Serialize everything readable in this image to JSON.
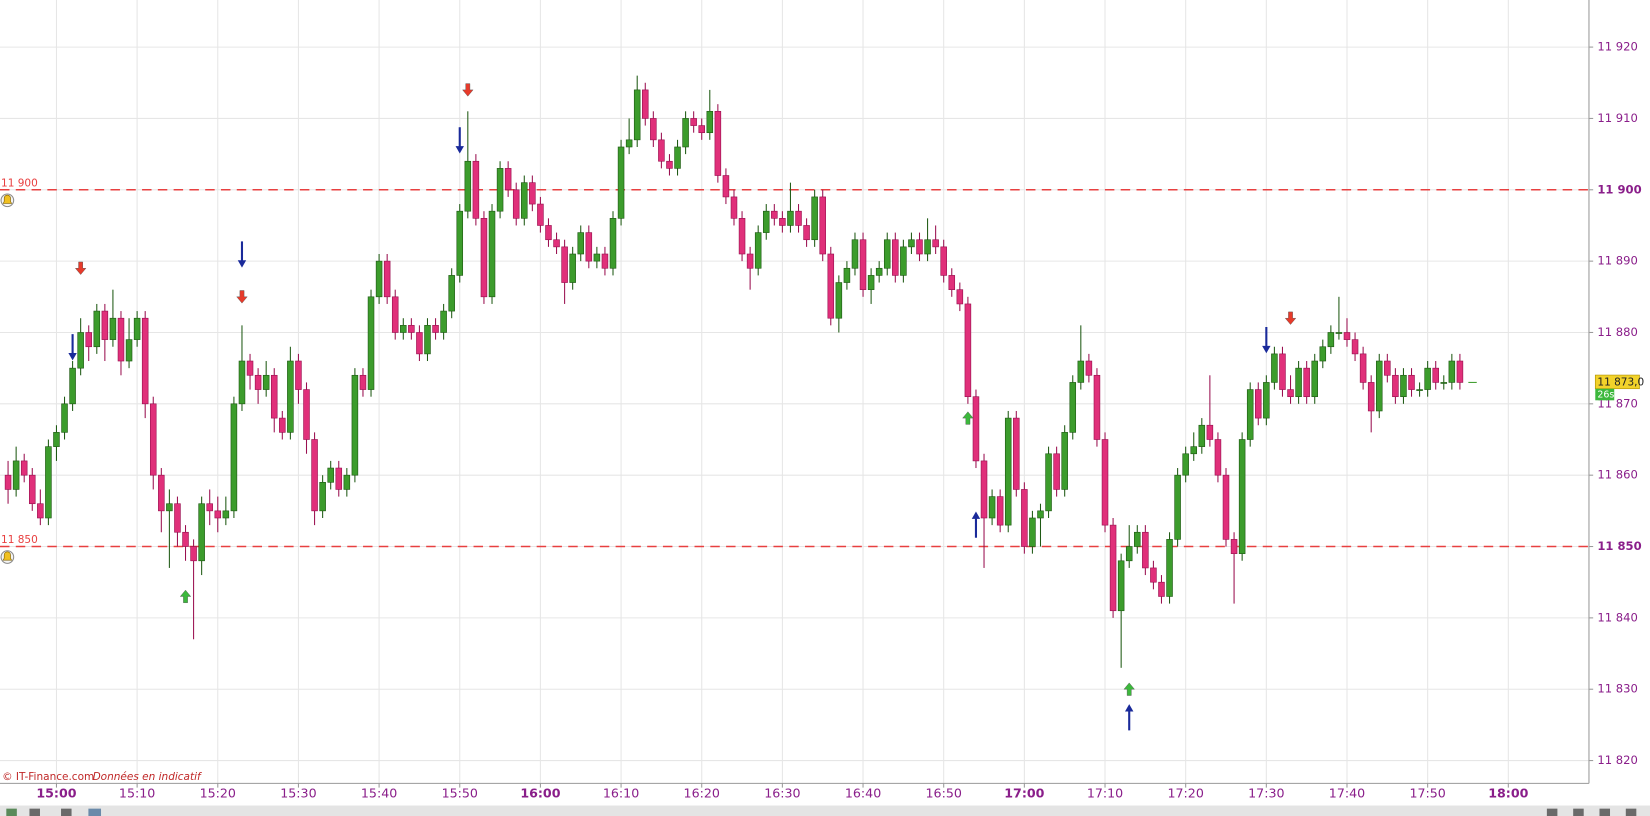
{
  "chart_data": {
    "type": "candlestick",
    "x": [
      "14:54",
      "14:55",
      "14:56",
      "14:57",
      "14:58",
      "14:59",
      "15:00",
      "15:01",
      "15:02",
      "15:03",
      "15:04",
      "15:05",
      "15:06",
      "15:07",
      "15:08",
      "15:09",
      "15:10",
      "15:11",
      "15:12",
      "15:13",
      "15:14",
      "15:15",
      "15:16",
      "15:17",
      "15:18",
      "15:19",
      "15:20",
      "15:21",
      "15:22",
      "15:23",
      "15:24",
      "15:25",
      "15:26",
      "15:27",
      "15:28",
      "15:29",
      "15:30",
      "15:31",
      "15:32",
      "15:33",
      "15:34",
      "15:35",
      "15:36",
      "15:37",
      "15:38",
      "15:39",
      "15:40",
      "15:41",
      "15:42",
      "15:43",
      "15:44",
      "15:45",
      "15:46",
      "15:47",
      "15:48",
      "15:49",
      "15:50",
      "15:51",
      "15:52",
      "15:53",
      "15:54",
      "15:55",
      "15:56",
      "15:57",
      "15:58",
      "15:59",
      "16:00",
      "16:01",
      "16:02",
      "16:03",
      "16:04",
      "16:05",
      "16:06",
      "16:07",
      "16:08",
      "16:09",
      "16:10",
      "16:11",
      "16:12",
      "16:13",
      "16:14",
      "16:15",
      "16:16",
      "16:17",
      "16:18",
      "16:19",
      "16:20",
      "16:21",
      "16:22",
      "16:23",
      "16:24",
      "16:25",
      "16:26",
      "16:27",
      "16:28",
      "16:29",
      "16:30",
      "16:31",
      "16:32",
      "16:33",
      "16:34",
      "16:35",
      "16:36",
      "16:37",
      "16:38",
      "16:39",
      "16:40",
      "16:41",
      "16:42",
      "16:43",
      "16:44",
      "16:45",
      "16:46",
      "16:47",
      "16:48",
      "16:49",
      "16:50",
      "16:51",
      "16:52",
      "16:53",
      "16:54",
      "16:55",
      "16:56",
      "16:57",
      "16:58",
      "16:59",
      "17:00",
      "17:01",
      "17:02",
      "17:03",
      "17:04",
      "17:05",
      "17:06",
      "17:07",
      "17:08",
      "17:09",
      "17:10",
      "17:11",
      "17:12",
      "17:13",
      "17:14",
      "17:15",
      "17:16",
      "17:17",
      "17:18",
      "17:19",
      "17:20",
      "17:21",
      "17:22",
      "17:23",
      "17:24",
      "17:25",
      "17:26",
      "17:27",
      "17:28",
      "17:29",
      "17:30",
      "17:31",
      "17:32",
      "17:33",
      "17:34",
      "17:35",
      "17:36",
      "17:37",
      "17:38",
      "17:39",
      "17:40",
      "17:41",
      "17:42",
      "17:43",
      "17:44",
      "17:45",
      "17:46",
      "17:47",
      "17:48",
      "17:49",
      "17:50",
      "17:51",
      "17:52",
      "17:53",
      "17:54"
    ],
    "candles": [
      [
        11860,
        11862,
        11856,
        11858
      ],
      [
        11858,
        11864,
        11857,
        11862
      ],
      [
        11862,
        11863,
        11859,
        11860
      ],
      [
        11860,
        11861,
        11855,
        11856
      ],
      [
        11856,
        11858,
        11853,
        11854
      ],
      [
        11854,
        11865,
        11853,
        11864
      ],
      [
        11864,
        11867,
        11862,
        11866
      ],
      [
        11866,
        11871,
        11865,
        11870
      ],
      [
        11870,
        11876,
        11869,
        11875
      ],
      [
        11875,
        11882,
        11874,
        11880
      ],
      [
        11880,
        11881,
        11876,
        11878
      ],
      [
        11878,
        11884,
        11877,
        11883
      ],
      [
        11883,
        11884,
        11876,
        11879
      ],
      [
        11879,
        11886,
        11878,
        11882
      ],
      [
        11882,
        11883,
        11874,
        11876
      ],
      [
        11876,
        11882,
        11875,
        11879
      ],
      [
        11879,
        11883,
        11878,
        11882
      ],
      [
        11882,
        11883,
        11868,
        11870
      ],
      [
        11870,
        11871,
        11858,
        11860
      ],
      [
        11860,
        11861,
        11852,
        11855
      ],
      [
        11855,
        11858,
        11847,
        11856
      ],
      [
        11856,
        11857,
        11850,
        11852
      ],
      [
        11852,
        11853,
        11848,
        11850
      ],
      [
        11850,
        11851,
        11837,
        11848
      ],
      [
        11848,
        11857,
        11846,
        11856
      ],
      [
        11856,
        11858,
        11853,
        11855
      ],
      [
        11855,
        11857,
        11852,
        11854
      ],
      [
        11854,
        11857,
        11853,
        11855
      ],
      [
        11855,
        11871,
        11854,
        11870
      ],
      [
        11870,
        11881,
        11869,
        11876
      ],
      [
        11876,
        11877,
        11872,
        11874
      ],
      [
        11874,
        11875,
        11870,
        11872
      ],
      [
        11872,
        11876,
        11871,
        11874
      ],
      [
        11874,
        11875,
        11866,
        11868
      ],
      [
        11868,
        11869,
        11865,
        11866
      ],
      [
        11866,
        11878,
        11865,
        11876
      ],
      [
        11876,
        11877,
        11870,
        11872
      ],
      [
        11872,
        11873,
        11863,
        11865
      ],
      [
        11865,
        11866,
        11853,
        11855
      ],
      [
        11855,
        11860,
        11854,
        11859
      ],
      [
        11859,
        11862,
        11858,
        11861
      ],
      [
        11861,
        11862,
        11857,
        11858
      ],
      [
        11858,
        11861,
        11857,
        11860
      ],
      [
        11860,
        11875,
        11859,
        11874
      ],
      [
        11874,
        11875,
        11871,
        11872
      ],
      [
        11872,
        11886,
        11871,
        11885
      ],
      [
        11885,
        11891,
        11884,
        11890
      ],
      [
        11890,
        11891,
        11884,
        11885
      ],
      [
        11885,
        11886,
        11879,
        11880
      ],
      [
        11880,
        11882,
        11879,
        11881
      ],
      [
        11881,
        11882,
        11879,
        11880
      ],
      [
        11880,
        11881,
        11876,
        11877
      ],
      [
        11877,
        11882,
        11876,
        11881
      ],
      [
        11881,
        11882,
        11879,
        11880
      ],
      [
        11880,
        11884,
        11879,
        11883
      ],
      [
        11883,
        11889,
        11882,
        11888
      ],
      [
        11888,
        11898,
        11887,
        11897
      ],
      [
        11897,
        11911,
        11896,
        11904
      ],
      [
        11904,
        11905,
        11895,
        11896
      ],
      [
        11896,
        11897,
        11884,
        11885
      ],
      [
        11885,
        11898,
        11884,
        11897
      ],
      [
        11897,
        11904,
        11896,
        11903
      ],
      [
        11903,
        11904,
        11899,
        11900
      ],
      [
        11900,
        11901,
        11895,
        11896
      ],
      [
        11896,
        11902,
        11895,
        11901
      ],
      [
        11901,
        11902,
        11897,
        11898
      ],
      [
        11898,
        11899,
        11894,
        11895
      ],
      [
        11895,
        11896,
        11892,
        11893
      ],
      [
        11893,
        11894,
        11891,
        11892
      ],
      [
        11892,
        11893,
        11884,
        11887
      ],
      [
        11887,
        11892,
        11886,
        11891
      ],
      [
        11891,
        11895,
        11890,
        11894
      ],
      [
        11894,
        11895,
        11889,
        11890
      ],
      [
        11890,
        11892,
        11889,
        11891
      ],
      [
        11891,
        11892,
        11888,
        11889
      ],
      [
        11889,
        11897,
        11888,
        11896
      ],
      [
        11896,
        11907,
        11895,
        11906
      ],
      [
        11906,
        11910,
        11905,
        11907
      ],
      [
        11907,
        11916,
        11906,
        11914
      ],
      [
        11914,
        11915,
        11909,
        11910
      ],
      [
        11910,
        11911,
        11906,
        11907
      ],
      [
        11907,
        11908,
        11903,
        11904
      ],
      [
        11904,
        11905,
        11902,
        11903
      ],
      [
        11903,
        11907,
        11902,
        11906
      ],
      [
        11906,
        11911,
        11905,
        11910
      ],
      [
        11910,
        11911,
        11908,
        11909
      ],
      [
        11909,
        11910,
        11907,
        11908
      ],
      [
        11908,
        11914,
        11907,
        11911
      ],
      [
        11911,
        11912,
        11901,
        11902
      ],
      [
        11902,
        11903,
        11898,
        11899
      ],
      [
        11899,
        11900,
        11895,
        11896
      ],
      [
        11896,
        11897,
        11890,
        11891
      ],
      [
        11891,
        11892,
        11886,
        11889
      ],
      [
        11889,
        11895,
        11888,
        11894
      ],
      [
        11894,
        11898,
        11893,
        11897
      ],
      [
        11897,
        11898,
        11895,
        11896
      ],
      [
        11896,
        11897,
        11894,
        11895
      ],
      [
        11895,
        11901,
        11894,
        11897
      ],
      [
        11897,
        11898,
        11894,
        11895
      ],
      [
        11895,
        11896,
        11892,
        11893
      ],
      [
        11893,
        11900,
        11892,
        11899
      ],
      [
        11899,
        11900,
        11890,
        11891
      ],
      [
        11891,
        11892,
        11881,
        11882
      ],
      [
        11882,
        11888,
        11880,
        11887
      ],
      [
        11887,
        11890,
        11886,
        11889
      ],
      [
        11889,
        11894,
        11888,
        11893
      ],
      [
        11893,
        11894,
        11885,
        11886
      ],
      [
        11886,
        11889,
        11884,
        11888
      ],
      [
        11888,
        11890,
        11887,
        11889
      ],
      [
        11889,
        11894,
        11888,
        11893
      ],
      [
        11893,
        11894,
        11887,
        11888
      ],
      [
        11888,
        11893,
        11887,
        11892
      ],
      [
        11892,
        11894,
        11891,
        11893
      ],
      [
        11893,
        11894,
        11890,
        11891
      ],
      [
        11891,
        11896,
        11890,
        11893
      ],
      [
        11893,
        11895,
        11891,
        11892
      ],
      [
        11892,
        11893,
        11887,
        11888
      ],
      [
        11888,
        11889,
        11885,
        11886
      ],
      [
        11886,
        11887,
        11883,
        11884
      ],
      [
        11884,
        11885,
        11870,
        11871
      ],
      [
        11871,
        11872,
        11861,
        11862
      ],
      [
        11862,
        11863,
        11847,
        11854
      ],
      [
        11854,
        11858,
        11853,
        11857
      ],
      [
        11857,
        11858,
        11852,
        11853
      ],
      [
        11853,
        11869,
        11852,
        11868
      ],
      [
        11868,
        11869,
        11857,
        11858
      ],
      [
        11858,
        11859,
        11849,
        11850
      ],
      [
        11850,
        11855,
        11849,
        11854
      ],
      [
        11854,
        11856,
        11850,
        11855
      ],
      [
        11855,
        11864,
        11854,
        11863
      ],
      [
        11863,
        11864,
        11857,
        11858
      ],
      [
        11858,
        11867,
        11857,
        11866
      ],
      [
        11866,
        11874,
        11865,
        11873
      ],
      [
        11873,
        11881,
        11872,
        11876
      ],
      [
        11876,
        11877,
        11873,
        11874
      ],
      [
        11874,
        11875,
        11864,
        11865
      ],
      [
        11865,
        11866,
        11852,
        11853
      ],
      [
        11853,
        11854,
        11840,
        11841
      ],
      [
        11841,
        11849,
        11833,
        11848
      ],
      [
        11848,
        11853,
        11847,
        11850
      ],
      [
        11850,
        11853,
        11849,
        11852
      ],
      [
        11852,
        11853,
        11846,
        11847
      ],
      [
        11847,
        11848,
        11844,
        11845
      ],
      [
        11845,
        11846,
        11842,
        11843
      ],
      [
        11843,
        11852,
        11842,
        11851
      ],
      [
        11851,
        11861,
        11850,
        11860
      ],
      [
        11860,
        11864,
        11859,
        11863
      ],
      [
        11863,
        11866,
        11862,
        11864
      ],
      [
        11864,
        11868,
        11863,
        11867
      ],
      [
        11867,
        11874,
        11864,
        11865
      ],
      [
        11865,
        11866,
        11859,
        11860
      ],
      [
        11860,
        11861,
        11850,
        11851
      ],
      [
        11851,
        11852,
        11842,
        11849
      ],
      [
        11849,
        11866,
        11848,
        11865
      ],
      [
        11865,
        11873,
        11864,
        11872
      ],
      [
        11872,
        11873,
        11867,
        11868
      ],
      [
        11868,
        11874,
        11867,
        11873
      ],
      [
        11873,
        11878,
        11872,
        11877
      ],
      [
        11877,
        11878,
        11871,
        11872
      ],
      [
        11872,
        11874,
        11870,
        11871
      ],
      [
        11871,
        11876,
        11870,
        11875
      ],
      [
        11875,
        11876,
        11870,
        11871
      ],
      [
        11871,
        11877,
        11870,
        11876
      ],
      [
        11876,
        11879,
        11875,
        11878
      ],
      [
        11878,
        11881,
        11877,
        11880
      ],
      [
        11880,
        11885,
        11879,
        11880
      ],
      [
        11880,
        11882,
        11878,
        11879
      ],
      [
        11879,
        11880,
        11876,
        11877
      ],
      [
        11877,
        11878,
        11872,
        11873
      ],
      [
        11873,
        11874,
        11866,
        11869
      ],
      [
        11869,
        11877,
        11868,
        11876
      ],
      [
        11876,
        11877,
        11873,
        11874
      ],
      [
        11874,
        11875,
        11870,
        11871
      ],
      [
        11871,
        11875,
        11870,
        11874
      ],
      [
        11874,
        11875,
        11871,
        11872
      ],
      [
        11872,
        11873,
        11871,
        11872
      ],
      [
        11872,
        11876,
        11871,
        11875
      ],
      [
        11875,
        11876,
        11872,
        11873
      ],
      [
        11873,
        11874,
        11872,
        11873
      ],
      [
        11873,
        11877,
        11872,
        11876
      ],
      [
        11876,
        11877,
        11872,
        11873
      ]
    ],
    "up_color": "#3c9c2c",
    "down_color": "#e0307a",
    "xlim": [
      "14:53",
      "18:10"
    ],
    "xticks": [
      "15:00",
      "15:10",
      "15:20",
      "15:30",
      "15:40",
      "15:50",
      "16:00",
      "16:10",
      "16:20",
      "16:30",
      "16:40",
      "16:50",
      "17:00",
      "17:10",
      "17:20",
      "17:30",
      "17:40",
      "17:50",
      "18:00"
    ],
    "ylim": [
      11816.8,
      11926.6
    ],
    "yticks": [
      {
        "value": 11820,
        "label": "11 820"
      },
      {
        "value": 11830,
        "label": "11 830"
      },
      {
        "value": 11840,
        "label": "11 840"
      },
      {
        "value": 11850,
        "label": "11 850"
      },
      {
        "value": 11860,
        "label": "11 860"
      },
      {
        "value": 11870,
        "label": "11 870"
      },
      {
        "value": 11880,
        "label": "11 880"
      },
      {
        "value": 11890,
        "label": "11 890"
      },
      {
        "value": 11900,
        "label": "11 900"
      },
      {
        "value": 11910,
        "label": "11 910"
      },
      {
        "value": 11920,
        "label": "11 920"
      }
    ],
    "grid": true,
    "levels": [
      {
        "value": 11900,
        "label": "11 900"
      },
      {
        "value": 11850,
        "label": "11 850"
      }
    ],
    "level_color": "#e84040",
    "last_price": {
      "value": 11873,
      "label": "11 873,0"
    },
    "timer": "26s",
    "markers": [
      {
        "x": "15:03",
        "y": 11889,
        "shape": "down",
        "style": "block",
        "color": "#e83a2a"
      },
      {
        "x": "15:02",
        "y": 11878,
        "shape": "down",
        "style": "line",
        "color": "#1a2a9a"
      },
      {
        "x": "15:23",
        "y": 11885,
        "shape": "down",
        "style": "block",
        "color": "#e83a2a"
      },
      {
        "x": "15:23",
        "y": 11891,
        "shape": "down",
        "style": "line",
        "color": "#1a2a9a"
      },
      {
        "x": "15:16",
        "y": 11843,
        "shape": "up",
        "style": "block",
        "color": "#3cb83c"
      },
      {
        "x": "15:51",
        "y": 11914,
        "shape": "down",
        "style": "block",
        "color": "#e83a2a"
      },
      {
        "x": "15:50",
        "y": 11907,
        "shape": "down",
        "style": "line",
        "color": "#1a2a9a"
      },
      {
        "x": "16:53",
        "y": 11868,
        "shape": "up",
        "style": "block",
        "color": "#3cb83c"
      },
      {
        "x": "16:54",
        "y": 11853,
        "shape": "up",
        "style": "line",
        "color": "#1a2a9a"
      },
      {
        "x": "17:13",
        "y": 11830,
        "shape": "up",
        "style": "block",
        "color": "#3cb83c"
      },
      {
        "x": "17:13",
        "y": 11826,
        "shape": "up",
        "style": "line",
        "color": "#1a2a9a"
      },
      {
        "x": "17:30",
        "y": 11879,
        "shape": "down",
        "style": "line",
        "color": "#1a2a9a"
      },
      {
        "x": "17:33",
        "y": 11882,
        "shape": "down",
        "style": "block",
        "color": "#e83a2a"
      }
    ],
    "source": "© IT-Finance.com",
    "note": "Données en indicatif"
  }
}
